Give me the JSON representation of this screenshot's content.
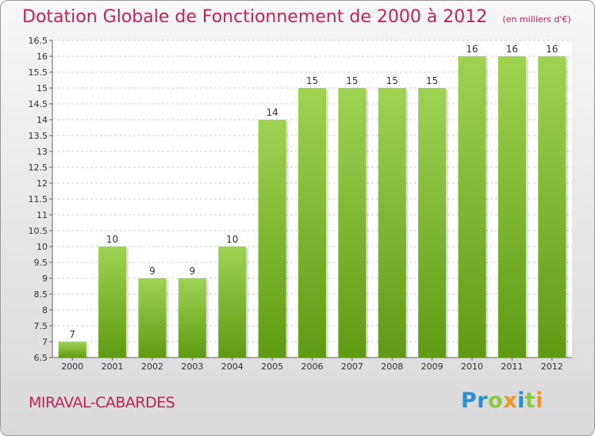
{
  "header": {
    "title": "Dotation Globale de Fonctionnement de 2000 à 2012",
    "subtitle": "(en milliers d'€)"
  },
  "footer": {
    "commune": "MIRAVAL-CABARDES",
    "brand_letters": [
      {
        "char": "P",
        "color": "#2a8fd6"
      },
      {
        "char": "r",
        "color": "#2a8fd6"
      },
      {
        "char": "o",
        "color": "#8dc63f"
      },
      {
        "char": "x",
        "color": "#f7941d"
      },
      {
        "char": "i",
        "color": "#2a8fd6"
      },
      {
        "char": "t",
        "color": "#8dc63f"
      },
      {
        "char": "i",
        "color": "#f7941d"
      }
    ]
  },
  "colors": {
    "accent": "#c4205a",
    "bar_top": "#9ed352",
    "bar_bottom": "#5f9b12",
    "grid": "#cccccc"
  },
  "chart_data": {
    "type": "bar",
    "categories": [
      "2000",
      "2001",
      "2002",
      "2003",
      "2004",
      "2005",
      "2006",
      "2007",
      "2008",
      "2009",
      "2010",
      "2011",
      "2012"
    ],
    "values": [
      7,
      10,
      9,
      9,
      10,
      14,
      15,
      15,
      15,
      15,
      16,
      16,
      16
    ],
    "ylim": [
      6.5,
      16.5
    ],
    "yticks": [
      "6.5",
      "7",
      "7.5",
      "8",
      "8.5",
      "9",
      "9.5",
      "10",
      "10.5",
      "11",
      "11.5",
      "12",
      "12.5",
      "13",
      "13.5",
      "14",
      "14.5",
      "15",
      "15.5",
      "16",
      "16.5"
    ],
    "grid": true
  }
}
